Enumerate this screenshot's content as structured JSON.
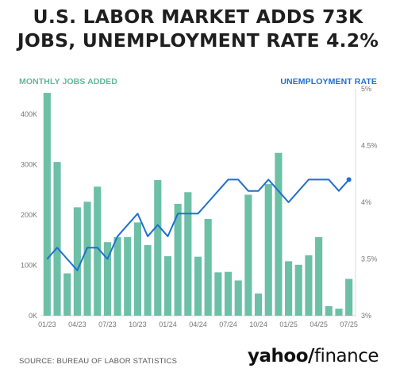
{
  "title_lines": [
    "U.S. LABOR MARKET ADDS 73K",
    "JOBS, UNEMPLOYMENT RATE 4.2%"
  ],
  "source": "SOURCE: BUREAU OF LABOR STATISTICS",
  "brand": {
    "word": "yahoo",
    "slash": "/",
    "suffix": "finance"
  },
  "colors": {
    "bars": "#6cc0a6",
    "line": "#1f6fd0",
    "left_label": "#5fb89c",
    "right_label": "#1f6fd0"
  },
  "chart_data": {
    "type": "bar",
    "series": [
      {
        "name": "MONTHLY JOBS ADDED",
        "axis": "left",
        "type": "bar",
        "values": [
          442000,
          305000,
          84000,
          215000,
          226000,
          256000,
          146000,
          156000,
          156000,
          185000,
          140000,
          269000,
          118000,
          222000,
          245000,
          117000,
          192000,
          86000,
          87000,
          70000,
          240000,
          44000,
          261000,
          323000,
          108000,
          101000,
          120000,
          156000,
          19000,
          14000,
          73000
        ]
      },
      {
        "name": "UNEMPLOYMENT RATE",
        "axis": "right",
        "type": "line",
        "values": [
          3.5,
          3.6,
          3.5,
          3.4,
          3.6,
          3.6,
          3.5,
          3.7,
          3.8,
          3.9,
          3.7,
          3.8,
          3.7,
          3.9,
          3.9,
          3.9,
          4.0,
          4.1,
          4.2,
          4.2,
          4.1,
          4.1,
          4.2,
          4.1,
          4.0,
          4.1,
          4.2,
          4.2,
          4.2,
          4.1,
          4.2
        ]
      }
    ],
    "categories": [
      "01/23",
      "02/23",
      "03/23",
      "04/23",
      "05/23",
      "06/23",
      "07/23",
      "08/23",
      "09/23",
      "10/23",
      "11/23",
      "12/23",
      "01/24",
      "02/24",
      "03/24",
      "04/24",
      "05/24",
      "06/24",
      "07/24",
      "08/24",
      "09/24",
      "10/24",
      "11/24",
      "12/24",
      "01/25",
      "02/25",
      "03/25",
      "04/25",
      "05/25",
      "06/25",
      "07/25"
    ],
    "x_tick_labels": [
      "01/23",
      "04/23",
      "07/23",
      "10/23",
      "01/24",
      "04/24",
      "07/24",
      "10/24",
      "01/25",
      "04/25",
      "07/25"
    ],
    "y_left": {
      "label": "MONTHLY JOBS ADDED",
      "range": [
        0,
        450000
      ],
      "ticks": [
        0,
        100000,
        200000,
        300000,
        400000
      ],
      "tick_labels": [
        "0K",
        "100K",
        "200K",
        "300K",
        "400K"
      ]
    },
    "y_right": {
      "label": "UNEMPLOYMENT RATE",
      "range": [
        3,
        5
      ],
      "ticks": [
        3,
        3.5,
        4,
        4.5,
        5
      ],
      "tick_labels": [
        "3%",
        "3.5%",
        "4%",
        "4.5%",
        "5%"
      ]
    },
    "title": "",
    "grid": false
  }
}
